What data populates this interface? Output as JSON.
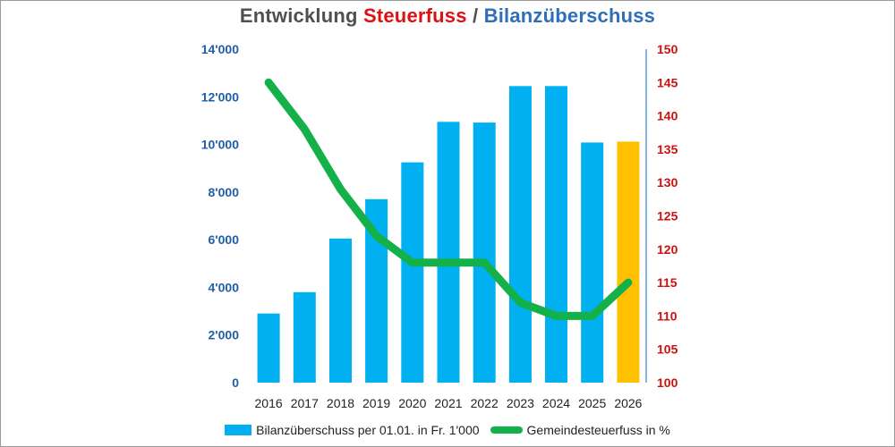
{
  "chart_data": {
    "type": "bar+line",
    "title": {
      "parts": [
        {
          "text": "Entwicklung ",
          "color": "#505050"
        },
        {
          "text": "Steuerfuss",
          "color": "#dd1111"
        },
        {
          "text": " / ",
          "color": "#505050"
        },
        {
          "text": "Bilanzüberschuss",
          "color": "#2e6fb8"
        }
      ]
    },
    "categories": [
      "2016",
      "2017",
      "2018",
      "2019",
      "2020",
      "2021",
      "2022",
      "2023",
      "2024",
      "2025",
      "2026"
    ],
    "series": [
      {
        "name": "Bilanzüberschuss per 01.01. in Fr. 1'000",
        "kind": "bar",
        "axis": "left",
        "color": "#00b0f0",
        "highlight_color": "#ffc000",
        "highlight_category": "2026",
        "values": [
          2900,
          3800,
          6050,
          7700,
          9250,
          10950,
          10920,
          12450,
          12450,
          10080,
          10120
        ]
      },
      {
        "name": "Gemeindesteuerfuss in %",
        "kind": "line",
        "axis": "right",
        "color": "#14b14b",
        "values": [
          145,
          138,
          129,
          122,
          118,
          118,
          118,
          112,
          110,
          110,
          115
        ]
      }
    ],
    "y_left": {
      "range": [
        0,
        14000
      ],
      "ticks": [
        0,
        2000,
        4000,
        6000,
        8000,
        10000,
        12000,
        14000
      ],
      "tick_labels": [
        "0",
        "2'000",
        "4'000",
        "6'000",
        "8'000",
        "10'000",
        "12'000",
        "14'000"
      ],
      "color": "#1f5fa8"
    },
    "y_right": {
      "range": [
        100,
        150
      ],
      "ticks": [
        100,
        105,
        110,
        115,
        120,
        125,
        130,
        135,
        140,
        145,
        150
      ],
      "tick_labels": [
        "100",
        "105",
        "110",
        "115",
        "120",
        "125",
        "130",
        "135",
        "140",
        "145",
        "150"
      ],
      "color": "#cc1111",
      "axis_line_color": "#5b9bd5"
    },
    "legend": {
      "placement": "bottom-center",
      "entries": [
        {
          "label": "Bilanzüberschuss per 01.01. in Fr. 1'000",
          "type": "bar",
          "color": "#00b0f0"
        },
        {
          "label": "Gemeindesteuerfuss in %",
          "type": "line",
          "color": "#14b14b"
        }
      ]
    },
    "grid": false
  }
}
